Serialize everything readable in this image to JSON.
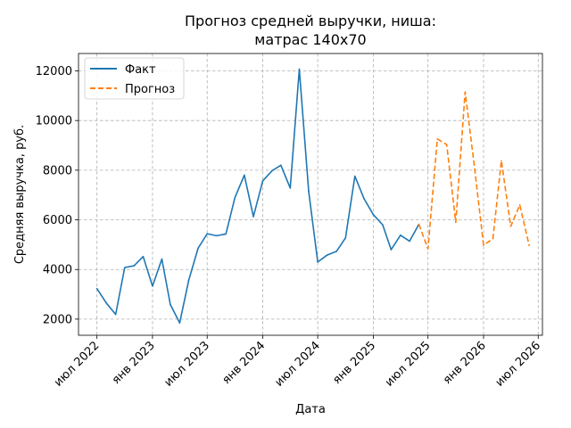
{
  "chart_data": {
    "type": "line",
    "title_line1": "Прогноз средней выручки, ниша:",
    "title_line2": "матрас 140х70",
    "xlabel": "Дата",
    "ylabel": "Средняя выручка, руб.",
    "x_range": [
      "2022-05-01",
      "2026-07-15"
    ],
    "ylim": [
      1350,
      12700
    ],
    "yticks": [
      2000,
      4000,
      6000,
      8000,
      10000,
      12000
    ],
    "xticks": [
      {
        "date": "2022-07-01",
        "label": "июл 2022"
      },
      {
        "date": "2023-01-01",
        "label": "янв 2023"
      },
      {
        "date": "2023-07-01",
        "label": "июл 2023"
      },
      {
        "date": "2024-01-01",
        "label": "янв 2024"
      },
      {
        "date": "2024-07-01",
        "label": "июл 2024"
      },
      {
        "date": "2025-01-01",
        "label": "янв 2025"
      },
      {
        "date": "2025-07-01",
        "label": "июл 2025"
      },
      {
        "date": "2026-01-01",
        "label": "янв 2026"
      },
      {
        "date": "2026-07-01",
        "label": "июл 2026"
      }
    ],
    "grid": true,
    "legend_position": "top-left",
    "series": [
      {
        "name": "Факт",
        "color": "#1f77b4",
        "style": "solid",
        "points": [
          {
            "x": "2022-07-01",
            "y": 3230
          },
          {
            "x": "2022-08-01",
            "y": 2650
          },
          {
            "x": "2022-09-01",
            "y": 2190
          },
          {
            "x": "2022-10-01",
            "y": 4080
          },
          {
            "x": "2022-11-01",
            "y": 4150
          },
          {
            "x": "2022-12-01",
            "y": 4520
          },
          {
            "x": "2023-01-01",
            "y": 3330
          },
          {
            "x": "2023-02-01",
            "y": 4420
          },
          {
            "x": "2023-03-01",
            "y": 2590
          },
          {
            "x": "2023-04-01",
            "y": 1850
          },
          {
            "x": "2023-05-01",
            "y": 3570
          },
          {
            "x": "2023-06-01",
            "y": 4860
          },
          {
            "x": "2023-07-01",
            "y": 5440
          },
          {
            "x": "2023-08-01",
            "y": 5360
          },
          {
            "x": "2023-09-01",
            "y": 5430
          },
          {
            "x": "2023-10-01",
            "y": 6900
          },
          {
            "x": "2023-11-01",
            "y": 7800
          },
          {
            "x": "2023-12-01",
            "y": 6130
          },
          {
            "x": "2024-01-01",
            "y": 7570
          },
          {
            "x": "2024-02-01",
            "y": 7980
          },
          {
            "x": "2024-03-01",
            "y": 8200
          },
          {
            "x": "2024-04-01",
            "y": 7280
          },
          {
            "x": "2024-05-01",
            "y": 12070
          },
          {
            "x": "2024-06-01",
            "y": 7150
          },
          {
            "x": "2024-07-01",
            "y": 4300
          },
          {
            "x": "2024-08-01",
            "y": 4580
          },
          {
            "x": "2024-09-01",
            "y": 4730
          },
          {
            "x": "2024-10-01",
            "y": 5270
          },
          {
            "x": "2024-11-01",
            "y": 7760
          },
          {
            "x": "2024-12-01",
            "y": 6860
          },
          {
            "x": "2025-01-01",
            "y": 6210
          },
          {
            "x": "2025-02-01",
            "y": 5800
          },
          {
            "x": "2025-03-01",
            "y": 4800
          },
          {
            "x": "2025-04-01",
            "y": 5380
          },
          {
            "x": "2025-05-01",
            "y": 5140
          },
          {
            "x": "2025-06-01",
            "y": 5820
          }
        ]
      },
      {
        "name": "Прогноз",
        "color": "#ff7f0e",
        "style": "dashed",
        "points": [
          {
            "x": "2025-06-01",
            "y": 5820
          },
          {
            "x": "2025-07-01",
            "y": 4830
          },
          {
            "x": "2025-08-01",
            "y": 9260
          },
          {
            "x": "2025-09-01",
            "y": 9030
          },
          {
            "x": "2025-10-01",
            "y": 5900
          },
          {
            "x": "2025-11-01",
            "y": 11150
          },
          {
            "x": "2025-12-01",
            "y": 8220
          },
          {
            "x": "2026-01-01",
            "y": 4980
          },
          {
            "x": "2026-02-01",
            "y": 5240
          },
          {
            "x": "2026-03-01",
            "y": 8380
          },
          {
            "x": "2026-04-01",
            "y": 5740
          },
          {
            "x": "2026-05-01",
            "y": 6600
          },
          {
            "x": "2026-06-01",
            "y": 4970
          }
        ]
      }
    ]
  }
}
